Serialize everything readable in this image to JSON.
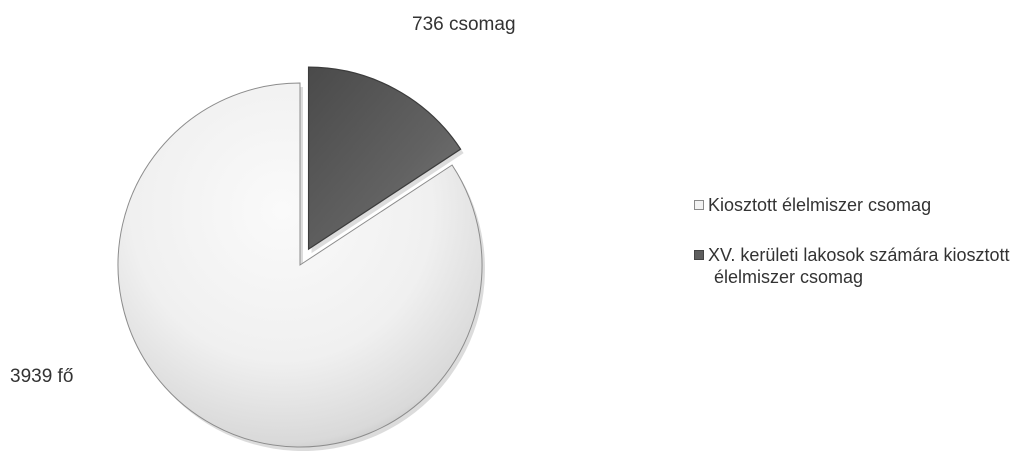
{
  "chart_data": {
    "type": "pie",
    "slices": [
      {
        "name": "XV. kerületi lakosok számára kiosztott élelmiszer csomag",
        "value": 736,
        "label": "736 csomag",
        "color": "#5a5a5a"
      },
      {
        "name": "Kiosztott élelmiszer csomag",
        "value": 3939,
        "label": "3939 fő",
        "color": "#ececec"
      }
    ],
    "legend": [
      "Kiosztott élelmiszer csomag",
      "XV. kerületi lakosok számára kiosztott élelmiszer csomag"
    ],
    "exploded_slice": "XV. kerületi lakosok számára kiosztott élelmiszer csomag",
    "legend_position": "right"
  }
}
